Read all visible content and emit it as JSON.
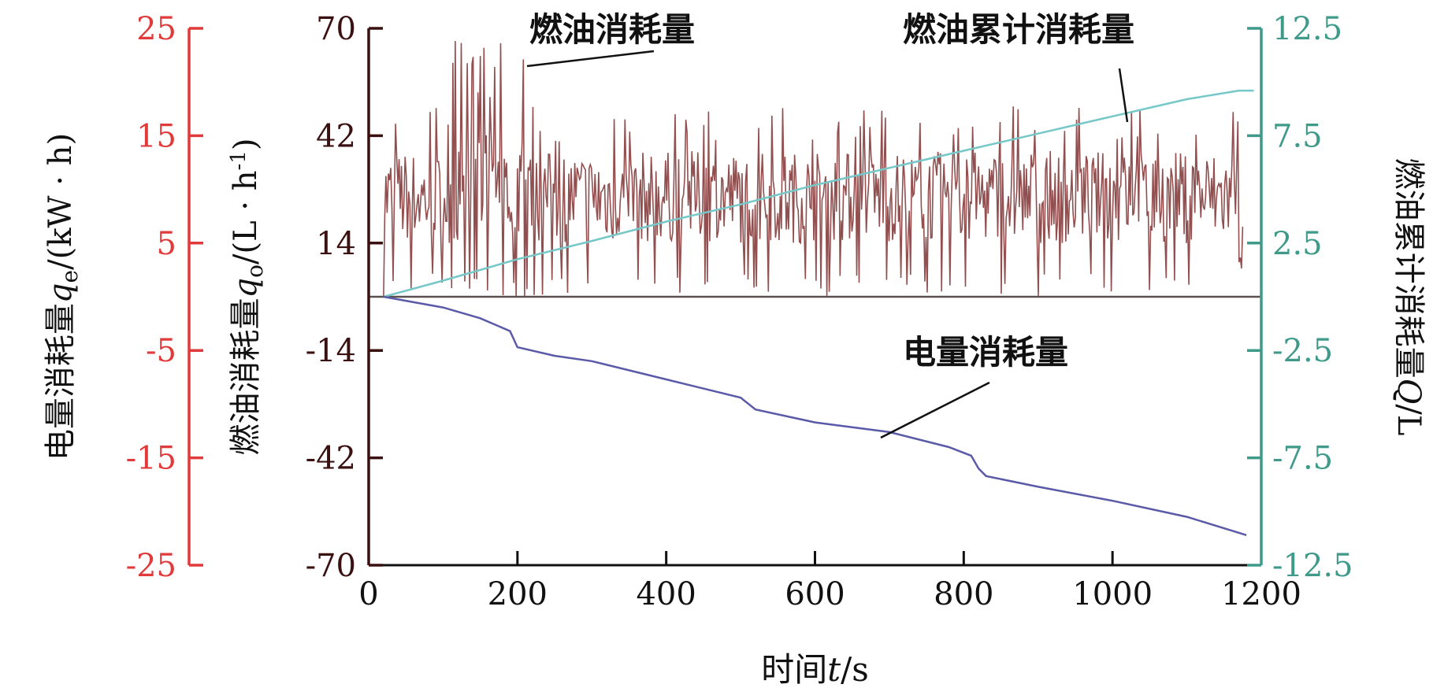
{
  "chart_data": {
    "type": "line",
    "colors": {
      "fuel": "#6e1414",
      "electric": "#5a5aa8",
      "cumulative": "#76c8c8",
      "axis_electric": "#e03a3a",
      "axis_fuel": "#3a1010",
      "axis_cumulative": "#3f9a8a"
    },
    "x_axis": {
      "label_text": "时间",
      "label_var": "t",
      "label_unit": "/s",
      "range": [
        0,
        1200
      ],
      "ticks": [
        "0",
        "200",
        "400",
        "600",
        "800",
        "1000",
        "1200"
      ]
    },
    "y_axes": {
      "electric": {
        "label_text": "电量消耗量",
        "label_var": "q",
        "label_sub": "e",
        "label_unit": "/(kW · h)",
        "range": [
          -25,
          25
        ],
        "ticks": [
          "25",
          "15",
          "5",
          "-5",
          "-15",
          "-25"
        ]
      },
      "fuel": {
        "label_text": "燃油消耗量",
        "label_var": "q",
        "label_sub": "o",
        "label_unit": "/(L · h",
        "label_sup": "-1",
        "label_close": ")",
        "range": [
          -70,
          70
        ],
        "ticks": [
          "70",
          "42",
          "14",
          "-14",
          "-42",
          "-70"
        ]
      },
      "cumulative": {
        "label_text": "燃油累计消耗量",
        "label_var": "Q",
        "label_unit": "/L",
        "range": [
          -12.5,
          12.5
        ],
        "ticks": [
          "12.5",
          "7.5",
          "2.5",
          "-2.5",
          "-7.5",
          "-12.5"
        ]
      }
    },
    "annotations": {
      "fuel": "燃油消耗量",
      "cumulative": "燃油累计消耗量",
      "electric": "电量消耗量"
    },
    "series": [
      {
        "key": "cumulative",
        "axis": "cumulative",
        "x": [
          20,
          100,
          200,
          300,
          400,
          500,
          600,
          700,
          800,
          900,
          1000,
          1100,
          1170,
          1190
        ],
        "y": [
          0,
          0.75,
          1.75,
          2.6,
          3.5,
          4.3,
          5.2,
          6.0,
          6.8,
          7.6,
          8.4,
          9.2,
          9.6,
          9.6
        ]
      },
      {
        "key": "electric",
        "axis": "electric",
        "x": [
          20,
          100,
          150,
          190,
          200,
          250,
          300,
          400,
          500,
          520,
          600,
          700,
          780,
          810,
          820,
          830,
          900,
          1000,
          1100,
          1180
        ],
        "y": [
          0,
          -1.0,
          -2.0,
          -3.2,
          -4.7,
          -5.5,
          -6.0,
          -7.7,
          -9.4,
          -10.5,
          -11.7,
          -12.6,
          -14.0,
          -14.8,
          -16.0,
          -16.7,
          -17.7,
          -19.0,
          -20.5,
          -22.2
        ]
      },
      {
        "key": "fuel",
        "axis": "fuel",
        "x_range": [
          20,
          1175
        ],
        "samples": 720,
        "level": 26,
        "spread": 12,
        "min": 0,
        "max": 68
      }
    ]
  }
}
